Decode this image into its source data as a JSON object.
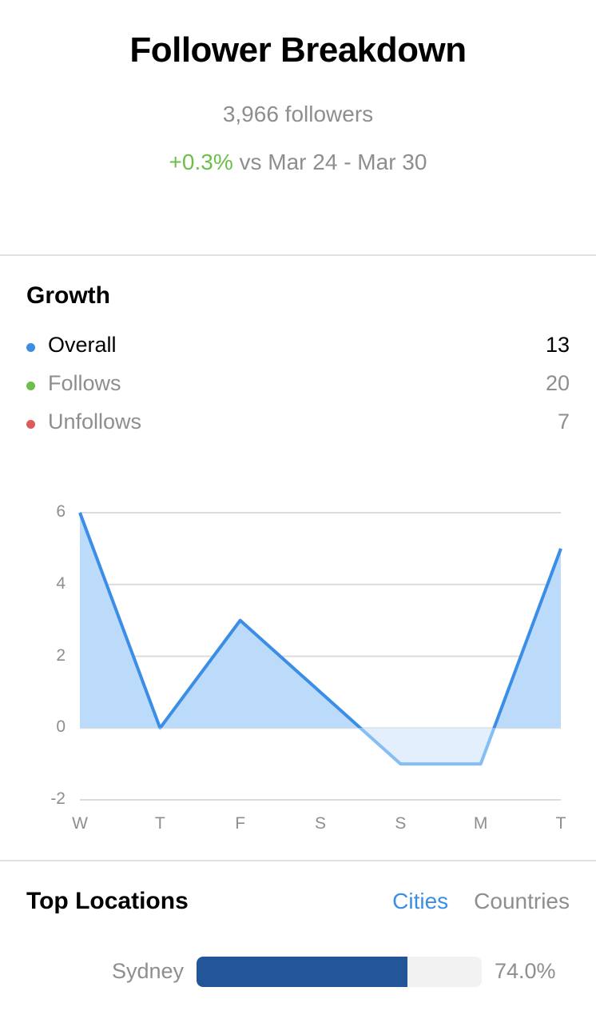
{
  "header": {
    "title": "Follower Breakdown",
    "followers": "3,966 followers",
    "change_pct": "+0.3%",
    "change_label": " vs Mar 24 - Mar 30"
  },
  "growth": {
    "title": "Growth",
    "legend": [
      {
        "label": "Overall",
        "value": "13",
        "color": "#3b8ee6"
      },
      {
        "label": "Follows",
        "value": "20",
        "color": "#6cc04a"
      },
      {
        "label": "Unfollows",
        "value": "7",
        "color": "#e05a5a"
      }
    ]
  },
  "chart_data": {
    "type": "area",
    "title": "Growth",
    "xlabel": "",
    "ylabel": "",
    "categories": [
      "W",
      "T",
      "F",
      "S",
      "S",
      "M",
      "T"
    ],
    "series": [
      {
        "name": "Overall",
        "values": [
          6,
          0,
          3,
          1,
          -1,
          -1,
          5
        ],
        "color": "#3b8ee6"
      }
    ],
    "yticks": [
      "6",
      "4",
      "2",
      "0",
      "-2"
    ],
    "ylim": [
      -2,
      6
    ],
    "grid": true,
    "legend_position": "top"
  },
  "top_locations": {
    "title": "Top Locations",
    "tabs": [
      {
        "label": "Cities",
        "active": true
      },
      {
        "label": "Countries",
        "active": false
      }
    ],
    "rows": [
      {
        "name": "Sydney",
        "percent": "74.0%",
        "value": 74.0
      }
    ]
  },
  "colors": {
    "accent": "#3b8ee6",
    "positive": "#6cc04a",
    "negative": "#e05a5a",
    "bar_fill": "#235599",
    "area_fill": "#bcdaf9",
    "area_fill_negative": "#e3effc"
  }
}
